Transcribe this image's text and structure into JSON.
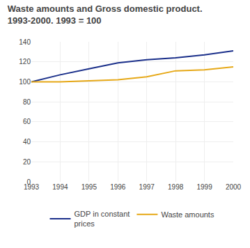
{
  "chart_data": {
    "type": "line",
    "title": "Waste amounts and Gross domestic product.",
    "subtitle": "1993-2000. 1993 = 100",
    "x": [
      1993,
      1994,
      1995,
      1996,
      1997,
      1998,
      1999,
      2000
    ],
    "series": [
      {
        "name": "GDP in constant\nprices",
        "color": "#1a2f8a",
        "values": [
          100,
          107,
          113,
          119,
          122,
          124,
          127,
          131
        ]
      },
      {
        "name": "Waste amounts",
        "color": "#e6a817",
        "values": [
          100,
          100,
          101,
          102,
          105,
          111,
          112,
          115
        ]
      }
    ],
    "xlim": [
      1993,
      2000
    ],
    "xticks": [
      1993,
      1994,
      1995,
      1996,
      1997,
      1998,
      1999,
      2000
    ],
    "ylim": [
      0,
      140
    ],
    "yticks": [
      0,
      20,
      40,
      60,
      80,
      100,
      120,
      140
    ],
    "grid": true,
    "legend": "bottom"
  }
}
